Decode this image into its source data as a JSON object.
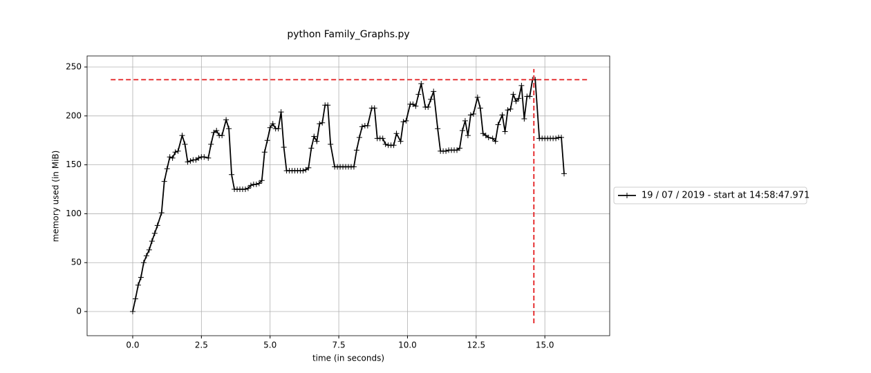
{
  "chart_data": {
    "type": "line",
    "title": "python Family_Graphs.py",
    "x_label": "time (in seconds)",
    "y_label": "memory used (in MiB)",
    "xlim": [
      -1.66,
      17.36
    ],
    "ylim": [
      -24.7,
      261.3
    ],
    "xticks": [
      {
        "value": 0,
        "label": "0.0"
      },
      2.5,
      {
        "value": 5,
        "label": "5.0"
      },
      7.5,
      {
        "value": 10,
        "label": "10.0"
      },
      12.5,
      {
        "value": 15,
        "label": "15.0"
      }
    ],
    "yticks": [
      0,
      50,
      100,
      150,
      200,
      250
    ],
    "grid": true,
    "legend": "right",
    "series": [
      {
        "name": "19 / 07 / 2019 - start at 14:58:47.971",
        "color": "#000000",
        "marker": "+",
        "x": [
          0.0,
          0.1,
          0.2,
          0.3,
          0.4,
          0.5,
          0.6,
          0.7,
          0.8,
          0.9,
          1.05,
          1.15,
          1.25,
          1.35,
          1.45,
          1.55,
          1.65,
          1.8,
          1.9,
          2.0,
          2.1,
          2.2,
          2.3,
          2.4,
          2.5,
          2.6,
          2.75,
          2.85,
          2.95,
          3.05,
          3.15,
          3.25,
          3.4,
          3.5,
          3.6,
          3.7,
          3.8,
          3.9,
          4.0,
          4.1,
          4.2,
          4.3,
          4.4,
          4.5,
          4.6,
          4.7,
          4.8,
          4.9,
          5.0,
          5.1,
          5.2,
          5.3,
          5.4,
          5.5,
          5.6,
          5.7,
          5.8,
          5.9,
          6.0,
          6.1,
          6.2,
          6.3,
          6.4,
          6.5,
          6.6,
          6.7,
          6.8,
          6.9,
          7.0,
          7.1,
          7.2,
          7.35,
          7.45,
          7.55,
          7.65,
          7.75,
          7.85,
          7.95,
          8.05,
          8.15,
          8.25,
          8.35,
          8.45,
          8.55,
          8.7,
          8.8,
          8.9,
          9.0,
          9.1,
          9.2,
          9.3,
          9.4,
          9.5,
          9.6,
          9.75,
          9.85,
          9.95,
          10.1,
          10.2,
          10.3,
          10.4,
          10.5,
          10.65,
          10.75,
          10.85,
          10.95,
          11.1,
          11.2,
          11.3,
          11.4,
          11.5,
          11.6,
          11.7,
          11.8,
          11.9,
          12.0,
          12.1,
          12.2,
          12.3,
          12.4,
          12.55,
          12.65,
          12.75,
          12.85,
          12.95,
          13.1,
          13.2,
          13.3,
          13.45,
          13.55,
          13.65,
          13.75,
          13.85,
          13.95,
          14.05,
          14.15,
          14.25,
          14.35,
          14.45,
          14.55,
          14.65,
          14.8,
          14.9,
          15.0,
          15.1,
          15.2,
          15.3,
          15.4,
          15.5,
          15.6,
          15.7
        ],
        "values": [
          0,
          13,
          27,
          35,
          50,
          57,
          63,
          72,
          80,
          88,
          101,
          133,
          146,
          158,
          157,
          163,
          164,
          180,
          171,
          153,
          154,
          155,
          155,
          157,
          158,
          158,
          157,
          171,
          183,
          185,
          180,
          180,
          196,
          187,
          140,
          125,
          125,
          125,
          125,
          125,
          126,
          129,
          130,
          130,
          131,
          134,
          163,
          175,
          188,
          192,
          187,
          187,
          204,
          168,
          144,
          144,
          144,
          144,
          144,
          144,
          144,
          145,
          147,
          167,
          179,
          174,
          192,
          193,
          211,
          211,
          171,
          148,
          148,
          148,
          148,
          148,
          148,
          148,
          148,
          165,
          178,
          189,
          190,
          190,
          208,
          208,
          177,
          177,
          177,
          171,
          170,
          170,
          170,
          182,
          174,
          194,
          195,
          212,
          212,
          210,
          222,
          233,
          209,
          209,
          217,
          225,
          187,
          164,
          164,
          164,
          165,
          165,
          165,
          165,
          167,
          185,
          195,
          180,
          201,
          202,
          219,
          208,
          182,
          180,
          178,
          177,
          174,
          191,
          201,
          184,
          206,
          207,
          222,
          215,
          218,
          231,
          197,
          220,
          220,
          237,
          237,
          177,
          177,
          177,
          177,
          177,
          177,
          177,
          178,
          178,
          141
        ]
      }
    ],
    "hlines": [
      {
        "y": 237,
        "xmin": -0.8,
        "xmax": 16.6,
        "color": "#e31a1c"
      }
    ],
    "vlines": [
      {
        "x": 14.6,
        "ymin": -12,
        "ymax": 248,
        "color": "#e31a1c"
      }
    ]
  }
}
